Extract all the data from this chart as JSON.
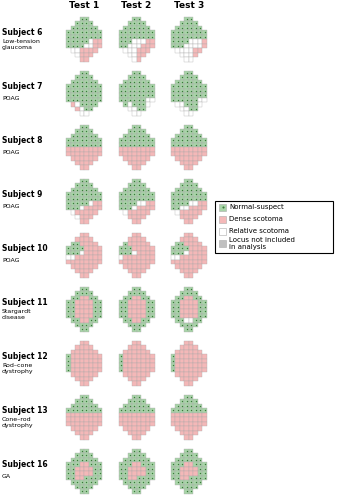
{
  "title_col1": "Test 1",
  "title_col2": "Test 2",
  "title_col3": "Test 3",
  "subjects": [
    {
      "label": "Subject 6",
      "sublabel": "Low-tension\nglaucoma"
    },
    {
      "label": "Subject 7",
      "sublabel": "POAG"
    },
    {
      "label": "Subject 8",
      "sublabel": "POAG"
    },
    {
      "label": "Subject 9",
      "sublabel": "POAG"
    },
    {
      "label": "Subject 10",
      "sublabel": "POAG"
    },
    {
      "label": "Subject 11",
      "sublabel": "Stargardt\ndisease"
    },
    {
      "label": "Subject 12",
      "sublabel": "Rod–cone\ndystrophy"
    },
    {
      "label": "Subject 13",
      "sublabel": "Cone–rod\ndystrophy"
    },
    {
      "label": "Subject 16",
      "sublabel": "GA"
    }
  ],
  "colors": {
    "normal": "#a8d4a8",
    "dense": "#f4b8b8",
    "relative": "#ffffff",
    "not_included": "#c0c0c0",
    "border": "#aaaaaa",
    "background": "#ffffff"
  },
  "legend": {
    "normal_label": "Normal-suspect",
    "dense_label": "Dense scotoma",
    "relative_label": "Relative scotoma",
    "not_included_label": "Locus not included\nin analysis"
  },
  "figsize": [
    3.37,
    5.0
  ],
  "dpi": 100
}
